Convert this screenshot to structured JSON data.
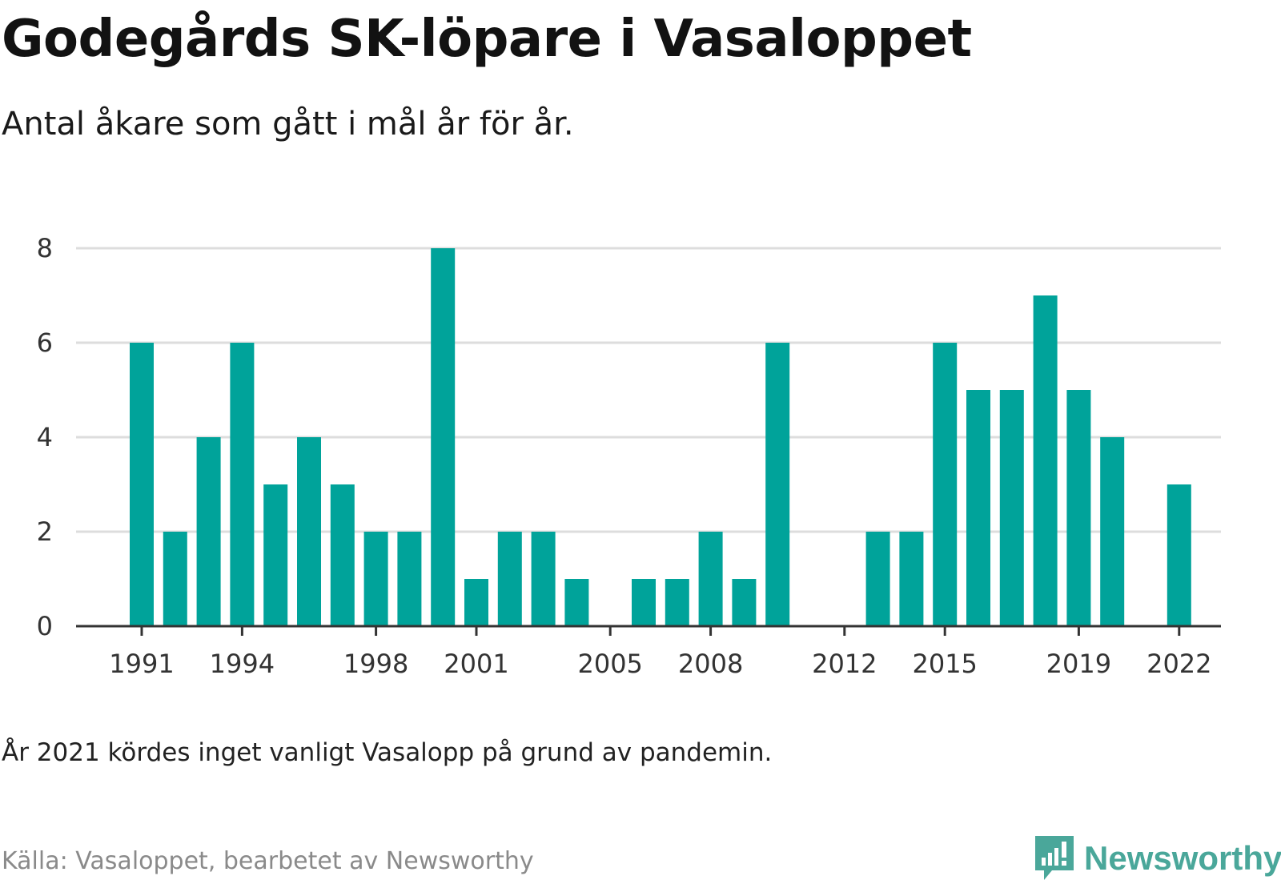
{
  "title": "Godegårds SK-löpare i Vasaloppet",
  "subtitle": "Antal åkare som gått i mål år för år.",
  "note": "År 2021 kördes inget vanligt Vasalopp på grund av pandemin.",
  "source": "Källa: Vasaloppet, bearbetet av Newsworthy",
  "logo": {
    "text": "Newsworthy",
    "icon": "newsworthy-logo-icon",
    "color": "#4aa79a"
  },
  "chart_data": {
    "type": "bar",
    "bar_color": "#00a39a",
    "grid": true,
    "ylim": [
      0,
      8
    ],
    "y_ticks": [
      0,
      2,
      4,
      6,
      8
    ],
    "x_ticks": [
      1991,
      1994,
      1998,
      2001,
      2005,
      2008,
      2012,
      2015,
      2019,
      2022
    ],
    "x_range": [
      1990,
      2023
    ],
    "series": [
      {
        "x": [
          1991,
          1992,
          1993,
          1994,
          1995,
          1996,
          1997,
          1998,
          1999,
          2000,
          2001,
          2002,
          2003,
          2004,
          2005,
          2006,
          2007,
          2008,
          2009,
          2010,
          2011,
          2012,
          2013,
          2014,
          2015,
          2016,
          2017,
          2018,
          2019,
          2020,
          2021,
          2022
        ],
        "values": [
          6,
          2,
          4,
          6,
          3,
          4,
          3,
          2,
          2,
          8,
          1,
          2,
          2,
          1,
          0,
          1,
          1,
          2,
          1,
          6,
          0,
          0,
          2,
          2,
          6,
          5,
          5,
          7,
          5,
          4,
          0,
          3
        ]
      }
    ]
  }
}
